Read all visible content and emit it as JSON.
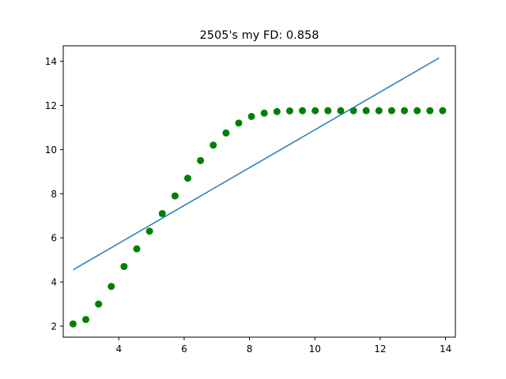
{
  "chart_data": {
    "type": "scatter",
    "title": "2505's my FD: 0.858",
    "xlabel": "",
    "ylabel": "",
    "xlim": [
      2.3,
      14.3
    ],
    "ylim": [
      1.5,
      14.7
    ],
    "xticks": [
      4,
      6,
      8,
      10,
      12,
      14
    ],
    "yticks": [
      2,
      4,
      6,
      8,
      10,
      12,
      14
    ],
    "grid": false,
    "legend": "none",
    "series": [
      {
        "kind": "scatter",
        "color": "#008000",
        "x": [
          2.6,
          2.99,
          3.38,
          3.77,
          4.16,
          4.55,
          4.94,
          5.33,
          5.72,
          6.11,
          6.5,
          6.89,
          7.28,
          7.67,
          8.06,
          8.45,
          8.84,
          9.23,
          9.62,
          10.01,
          10.4,
          10.79,
          11.18,
          11.57,
          11.96,
          12.35,
          12.74,
          13.13,
          13.52,
          13.91
        ],
        "y": [
          2.1,
          2.3,
          3.0,
          3.8,
          4.7,
          5.5,
          6.3,
          7.1,
          7.9,
          8.7,
          9.5,
          10.2,
          10.75,
          11.2,
          11.5,
          11.65,
          11.72,
          11.75,
          11.76,
          11.76,
          11.76,
          11.76,
          11.76,
          11.76,
          11.76,
          11.76,
          11.76,
          11.76,
          11.76,
          11.76
        ]
      },
      {
        "kind": "line",
        "color": "#1f77b4",
        "x": [
          2.6,
          13.8
        ],
        "y": [
          4.55,
          14.15
        ]
      }
    ]
  }
}
